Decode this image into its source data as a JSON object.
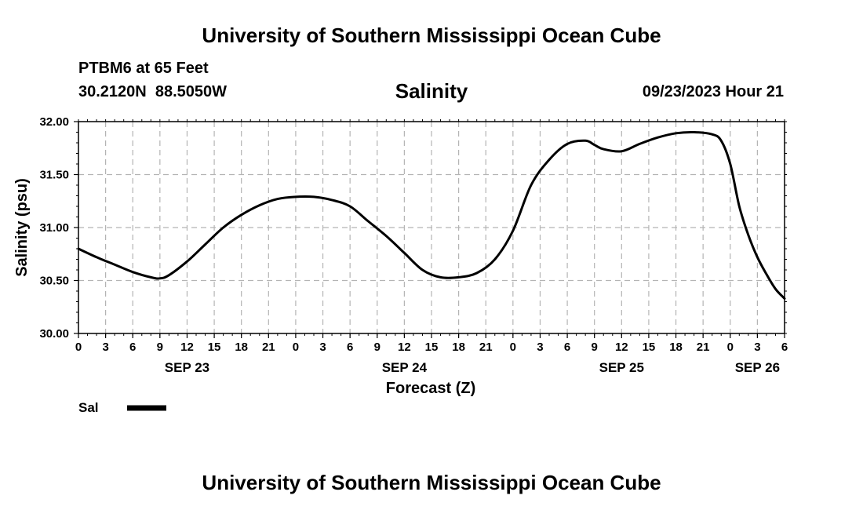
{
  "page": {
    "title_top": "University of Southern Mississippi Ocean Cube",
    "title_bottom": "University of Southern Mississippi Ocean Cube",
    "station_line": "PTBM6 at 65 Feet",
    "coords_line": "30.2120N  88.5050W",
    "timestamp": "09/23/2023 Hour 21"
  },
  "chart_data": {
    "type": "line",
    "title": "Salinity",
    "xlabel": "Forecast (Z)",
    "ylabel": "Salinity (psu)",
    "ylim": [
      30.0,
      32.0
    ],
    "xlim": [
      0,
      78
    ],
    "x_unit": "hours from 09/23/2023 00Z",
    "grid": true,
    "yticks": [
      "30.00",
      "30.50",
      "31.00",
      "31.50",
      "32.00"
    ],
    "xtick_labels": [
      "0",
      "3",
      "6",
      "9",
      "12",
      "15",
      "18",
      "21",
      "0",
      "3",
      "6",
      "9",
      "12",
      "15",
      "18",
      "21",
      "0",
      "3",
      "6",
      "9",
      "12",
      "15",
      "18",
      "21",
      "0",
      "3",
      "6"
    ],
    "date_labels": [
      {
        "label": "SEP 23",
        "hour": 12
      },
      {
        "label": "SEP 24",
        "hour": 36
      },
      {
        "label": "SEP 25",
        "hour": 60
      },
      {
        "label": "SEP 26",
        "hour": 75
      }
    ],
    "legend": {
      "label": "Sal",
      "color": "#000000",
      "placement": "bottom-left"
    },
    "series": [
      {
        "name": "Sal",
        "color": "#000000",
        "x": [
          0,
          2,
          4,
          6,
          8,
          9,
          10,
          12,
          14,
          16,
          18,
          20,
          22,
          24,
          26,
          28,
          30,
          32,
          34,
          36,
          38,
          40,
          42,
          44,
          46,
          48,
          50,
          52,
          54,
          56,
          57,
          58,
          60,
          62,
          64,
          66,
          68,
          70,
          71,
          72,
          73,
          74,
          75,
          76,
          77,
          78
        ],
        "y": [
          30.8,
          30.72,
          30.65,
          30.58,
          30.53,
          30.52,
          30.55,
          30.68,
          30.84,
          31.0,
          31.12,
          31.21,
          31.27,
          31.29,
          31.29,
          31.26,
          31.2,
          31.06,
          30.92,
          30.76,
          30.6,
          30.53,
          30.53,
          30.57,
          30.7,
          30.97,
          31.4,
          31.64,
          31.79,
          31.82,
          31.78,
          31.74,
          31.72,
          31.79,
          31.85,
          31.89,
          31.9,
          31.88,
          31.82,
          31.6,
          31.2,
          30.93,
          30.72,
          30.56,
          30.42,
          30.33
        ]
      }
    ]
  }
}
